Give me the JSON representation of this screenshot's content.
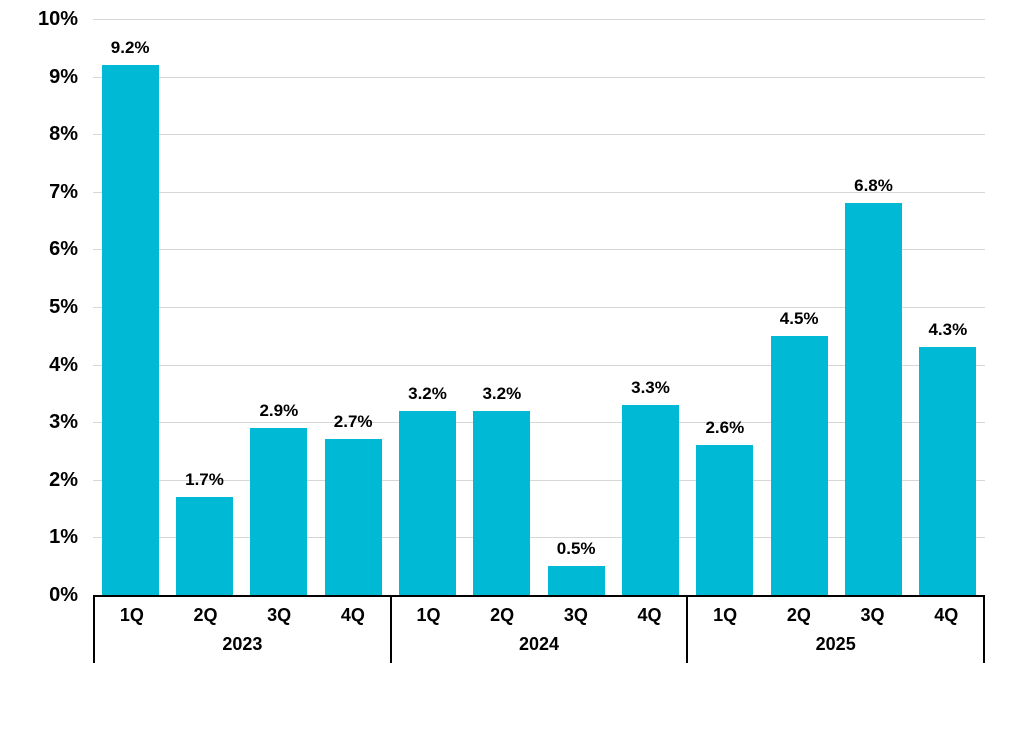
{
  "chart_data": {
    "type": "bar",
    "title": "",
    "xlabel": "",
    "ylabel": "",
    "ylim": [
      0,
      10
    ],
    "grid": true,
    "legend": false,
    "bar_color": "#00b9d5",
    "gridline_color": "#d6d6d6",
    "axis_line_color": "#000000",
    "label_color": "#000000",
    "y_ticks": [
      "0%",
      "1%",
      "2%",
      "3%",
      "4%",
      "5%",
      "6%",
      "7%",
      "8%",
      "9%",
      "10%"
    ],
    "groups": [
      {
        "year": "2023",
        "quarters": [
          "1Q",
          "2Q",
          "3Q",
          "4Q"
        ],
        "values": [
          9.2,
          1.7,
          2.9,
          2.7
        ],
        "labels": [
          "9.2%",
          "1.7%",
          "2.9%",
          "2.7%"
        ]
      },
      {
        "year": "2024",
        "quarters": [
          "1Q",
          "2Q",
          "3Q",
          "4Q"
        ],
        "values": [
          3.2,
          3.2,
          0.5,
          3.3
        ],
        "labels": [
          "3.2%",
          "3.2%",
          "0.5%",
          "3.3%"
        ]
      },
      {
        "year": "2025",
        "quarters": [
          "1Q",
          "2Q",
          "3Q",
          "4Q"
        ],
        "values": [
          2.6,
          4.5,
          6.8,
          4.3
        ],
        "labels": [
          "2.6%",
          "4.5%",
          "6.8%",
          "4.3%"
        ]
      }
    ]
  }
}
